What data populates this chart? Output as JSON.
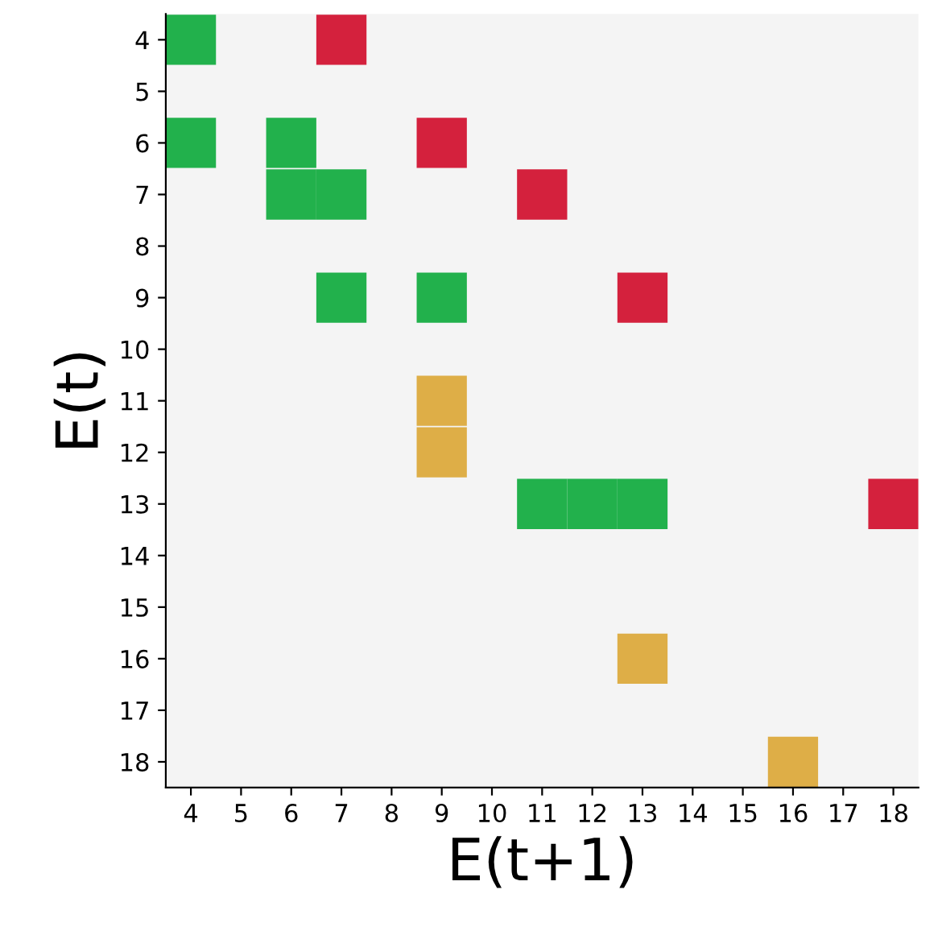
{
  "chart_data": {
    "type": "scatter",
    "xlabel": "E(t+1)",
    "ylabel": "E(t)",
    "marker": "square",
    "grid": false,
    "legend": false,
    "xlim": [
      3.5,
      18.5
    ],
    "ylim": [
      18.5,
      3.5
    ],
    "xticks": [
      4,
      5,
      6,
      7,
      8,
      9,
      10,
      11,
      12,
      13,
      14,
      15,
      16,
      17,
      18
    ],
    "yticks": [
      4,
      5,
      6,
      7,
      8,
      9,
      10,
      11,
      12,
      13,
      14,
      15,
      16,
      17,
      18
    ],
    "series": [
      {
        "color": "#22b14c",
        "x": [
          4,
          4,
          6,
          6,
          7,
          7,
          9,
          11,
          12,
          13
        ],
        "values": [
          4,
          6,
          6,
          7,
          7,
          9,
          9,
          13,
          13,
          13
        ]
      },
      {
        "color": "#d4213d",
        "x": [
          7,
          9,
          11,
          13,
          18
        ],
        "values": [
          4,
          6,
          7,
          9,
          13
        ]
      },
      {
        "color": "#deae47",
        "x": [
          9,
          9,
          13,
          16
        ],
        "values": [
          11,
          12,
          16,
          18
        ]
      }
    ]
  }
}
